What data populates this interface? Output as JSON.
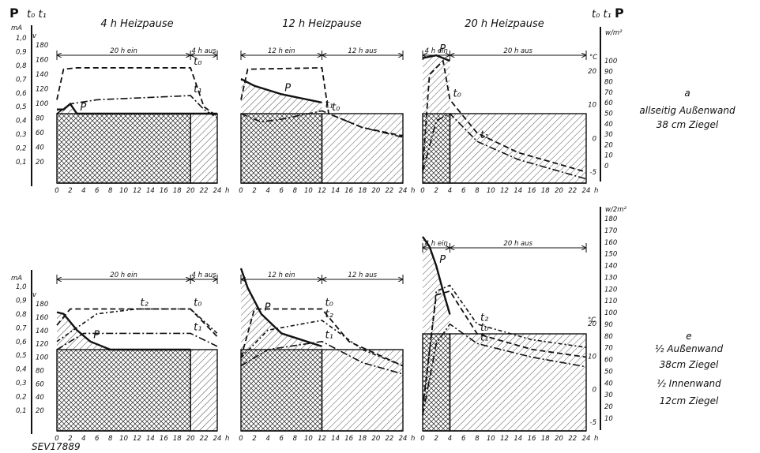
{
  "figure_label": "SEV17889",
  "y_symbols": {
    "P": "P",
    "t": "t₀ t₁"
  },
  "units": {
    "mA": "mA",
    "v": "v",
    "wm": "w/m²",
    "c": "°C",
    "w2m": "w/2m²"
  },
  "scales": {
    "left_ma": [
      "1,0",
      "0,9",
      "0,8",
      "0,7",
      "0,6",
      "0,5",
      "0,4",
      "0,3",
      "0,2",
      "0,1"
    ],
    "left_v": [
      "180",
      "160",
      "140",
      "120",
      "100",
      "80",
      "60",
      "40",
      "20"
    ],
    "top_right_w": [
      "100",
      "90",
      "80",
      "70",
      "60",
      "50",
      "40",
      "30",
      "20",
      "10",
      "0"
    ],
    "top_right_c": [
      "20",
      "10",
      "0",
      "-5"
    ],
    "bot_right_w": [
      "180",
      "170",
      "160",
      "150",
      "140",
      "130",
      "120",
      "110",
      "100",
      "90",
      "80",
      "70",
      "60",
      "50",
      "40",
      "30",
      "20",
      "10"
    ],
    "bot_right_c": [
      "20",
      "10",
      "0",
      "-5"
    ]
  },
  "row_notes": {
    "top": [
      "a",
      "allseitig Außenwand",
      "38 cm Ziegel"
    ],
    "bottom": [
      "e",
      "½ Außenwand",
      "38cm Ziegel",
      "½ Innenwand",
      "12cm Ziegel"
    ]
  },
  "chart_data": [
    {
      "type": "area",
      "title": "4 h Heizpause",
      "row": "a",
      "xlabel": "h",
      "xlim": [
        0,
        24
      ],
      "x_ticks": [
        0,
        2,
        4,
        6,
        8,
        10,
        12,
        14,
        16,
        18,
        20,
        22,
        24
      ],
      "ylim": [
        0,
        1.0
      ],
      "spans": [
        {
          "label": "20 h ein",
          "from": 0,
          "to": 20
        },
        {
          "label": "4 h aus",
          "from": 20,
          "to": 24
        }
      ],
      "series": [
        {
          "name": "P",
          "x": [
            0,
            1,
            2,
            3,
            20,
            24
          ],
          "values": [
            0.53,
            0.53,
            0.57,
            0.5,
            0.5,
            0.5
          ]
        },
        {
          "name": "t₀",
          "x": [
            0,
            1,
            3,
            20,
            22,
            24
          ],
          "values": [
            0.6,
            0.82,
            0.83,
            0.83,
            0.55,
            0.48
          ]
        },
        {
          "name": "t₁",
          "x": [
            0,
            2,
            6,
            20,
            22,
            24
          ],
          "values": [
            0.5,
            0.57,
            0.6,
            0.63,
            0.53,
            0.47
          ]
        }
      ],
      "annotations": [
        "t₀",
        "t₁",
        "t₀ t₁",
        "P"
      ]
    },
    {
      "type": "area",
      "title": "12 h Heizpause",
      "row": "a",
      "xlabel": "h",
      "xlim": [
        0,
        24
      ],
      "x_ticks": [
        0,
        2,
        4,
        6,
        8,
        10,
        12,
        14,
        16,
        18,
        20,
        22,
        24
      ],
      "ylim": [
        0,
        1.0
      ],
      "spans": [
        {
          "label": "12 h ein",
          "from": 0,
          "to": 12
        },
        {
          "label": "12 h aus",
          "from": 12,
          "to": 24
        }
      ],
      "series": [
        {
          "name": "P",
          "x": [
            0,
            2,
            6,
            12
          ],
          "values": [
            0.75,
            0.7,
            0.64,
            0.58
          ]
        },
        {
          "name": "t₀",
          "x": [
            0,
            1,
            12,
            13,
            18,
            24
          ],
          "values": [
            0.6,
            0.82,
            0.83,
            0.5,
            0.4,
            0.34
          ]
        },
        {
          "name": "t₁",
          "x": [
            0,
            3,
            6,
            12,
            18,
            24
          ],
          "values": [
            0.5,
            0.44,
            0.46,
            0.52,
            0.4,
            0.33
          ]
        }
      ],
      "annotations": [
        "t₀",
        "t₁",
        "t₀ t₁",
        "P"
      ]
    },
    {
      "type": "area",
      "title": "20 h Heizpause",
      "row": "a",
      "xlabel": "h",
      "xlim": [
        0,
        24
      ],
      "x_ticks": [
        0,
        2,
        4,
        6,
        8,
        10,
        12,
        14,
        16,
        18,
        20,
        22,
        24
      ],
      "ylim": [
        0,
        1.0
      ],
      "spans": [
        {
          "label": "4 h ein",
          "from": 0,
          "to": 4
        },
        {
          "label": "20 h aus",
          "from": 4,
          "to": 24
        }
      ],
      "series": [
        {
          "name": "P",
          "x": [
            0,
            2,
            4
          ],
          "values": [
            0.9,
            0.92,
            0.88
          ]
        },
        {
          "name": "t₀",
          "x": [
            0,
            1,
            3,
            4,
            8,
            14,
            24
          ],
          "values": [
            0.1,
            0.78,
            0.88,
            0.6,
            0.36,
            0.22,
            0.08
          ]
        },
        {
          "name": "t₁",
          "x": [
            0,
            2,
            4,
            8,
            14,
            24
          ],
          "values": [
            0.08,
            0.45,
            0.5,
            0.3,
            0.17,
            0.03
          ]
        }
      ],
      "annotations": [
        "t₀",
        "t₁",
        "t₀ t₁",
        "P"
      ]
    },
    {
      "type": "area",
      "title": "",
      "row": "e",
      "xlabel": "h",
      "xlim": [
        0,
        24
      ],
      "x_ticks": [
        0,
        2,
        4,
        6,
        8,
        10,
        12,
        14,
        16,
        18,
        20,
        22,
        24
      ],
      "ylim": [
        0,
        1.0
      ],
      "spans": [
        {
          "label": "20 h ein",
          "from": 0,
          "to": 20
        },
        {
          "label": "4 h aus",
          "from": 20,
          "to": 24
        }
      ],
      "series": [
        {
          "name": "P",
          "x": [
            0,
            1,
            3,
            5,
            8,
            20
          ],
          "values": [
            0.73,
            0.72,
            0.62,
            0.55,
            0.5,
            0.5
          ]
        },
        {
          "name": "t₀",
          "x": [
            0,
            2,
            20,
            24
          ],
          "values": [
            0.65,
            0.75,
            0.75,
            0.58
          ]
        },
        {
          "name": "t₂",
          "x": [
            0,
            6,
            12,
            20,
            24
          ],
          "values": [
            0.55,
            0.72,
            0.75,
            0.75,
            0.6
          ]
        },
        {
          "name": "t₁",
          "x": [
            0,
            4,
            20,
            24
          ],
          "values": [
            0.5,
            0.6,
            0.6,
            0.52
          ]
        }
      ],
      "annotations": [
        "t₀",
        "t₂",
        "t₁",
        "P"
      ]
    },
    {
      "type": "area",
      "title": "",
      "row": "e",
      "xlabel": "h",
      "xlim": [
        0,
        24
      ],
      "x_ticks": [
        0,
        2,
        4,
        6,
        8,
        10,
        12,
        14,
        16,
        18,
        20,
        22,
        24
      ],
      "ylim": [
        0,
        1.0
      ],
      "spans": [
        {
          "label": "12 h ein",
          "from": 0,
          "to": 12
        },
        {
          "label": "12 h aus",
          "from": 12,
          "to": 24
        }
      ],
      "series": [
        {
          "name": "P",
          "x": [
            0,
            1,
            3,
            6,
            12
          ],
          "values": [
            1.0,
            0.88,
            0.72,
            0.6,
            0.52
          ]
        },
        {
          "name": "t₀",
          "x": [
            0,
            2,
            12,
            16,
            24
          ],
          "values": [
            0.45,
            0.75,
            0.75,
            0.55,
            0.4
          ]
        },
        {
          "name": "t₂",
          "x": [
            0,
            4,
            12,
            18,
            24
          ],
          "values": [
            0.45,
            0.62,
            0.68,
            0.5,
            0.4
          ]
        },
        {
          "name": "t₁",
          "x": [
            0,
            4,
            12,
            18,
            24
          ],
          "values": [
            0.4,
            0.5,
            0.55,
            0.42,
            0.35
          ]
        }
      ],
      "annotations": [
        "t₀",
        "t₂",
        "t₁",
        "P"
      ]
    },
    {
      "type": "area",
      "title": "",
      "row": "e",
      "xlabel": "h",
      "xlim": [
        0,
        24
      ],
      "x_ticks": [
        0,
        2,
        4,
        6,
        8,
        10,
        12,
        14,
        16,
        18,
        20,
        22,
        24
      ],
      "ylim": [
        0,
        1.0
      ],
      "spans": [
        {
          "label": "4 h ein",
          "from": 0,
          "to": 4
        },
        {
          "label": "20 h aus",
          "from": 4,
          "to": 24
        }
      ],
      "series": [
        {
          "name": "P",
          "x": [
            0,
            1,
            2,
            3,
            4
          ],
          "values": [
            1.0,
            0.95,
            0.85,
            0.72,
            0.6
          ]
        },
        {
          "name": "t₀",
          "x": [
            0,
            2,
            4,
            8,
            16,
            24
          ],
          "values": [
            0.12,
            0.7,
            0.72,
            0.5,
            0.42,
            0.38
          ]
        },
        {
          "name": "t₂",
          "x": [
            0,
            2,
            4,
            8,
            16,
            24
          ],
          "values": [
            0.1,
            0.72,
            0.75,
            0.55,
            0.47,
            0.43
          ]
        },
        {
          "name": "t₁",
          "x": [
            0,
            2,
            4,
            8,
            16,
            24
          ],
          "values": [
            0.08,
            0.45,
            0.55,
            0.45,
            0.38,
            0.33
          ]
        }
      ],
      "annotations": [
        "t₀",
        "t₂",
        "t₁",
        "P"
      ]
    }
  ]
}
